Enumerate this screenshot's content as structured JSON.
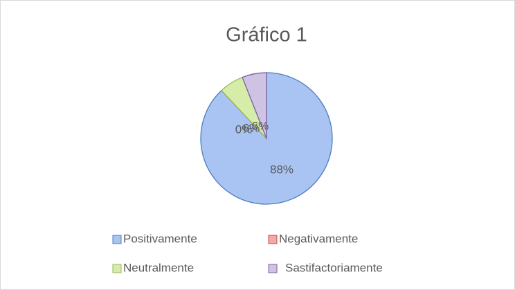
{
  "chart_data": {
    "type": "pie",
    "title": "Gráfico 1",
    "categories": [
      "Positivamente",
      "Negativamente",
      "Neutralmente",
      "Sastifactoriamente"
    ],
    "values": [
      88,
      0,
      6,
      6
    ],
    "value_labels": [
      "88%",
      "0%",
      "6%",
      "6%"
    ],
    "colors": [
      "#a9c4f2",
      "#f2a9a8",
      "#d6edaa",
      "#cfc3e3"
    ],
    "stroke_colors": [
      "#4a7ebb",
      "#be4b48",
      "#98b954",
      "#7d60a0"
    ],
    "legend": "bottom"
  }
}
